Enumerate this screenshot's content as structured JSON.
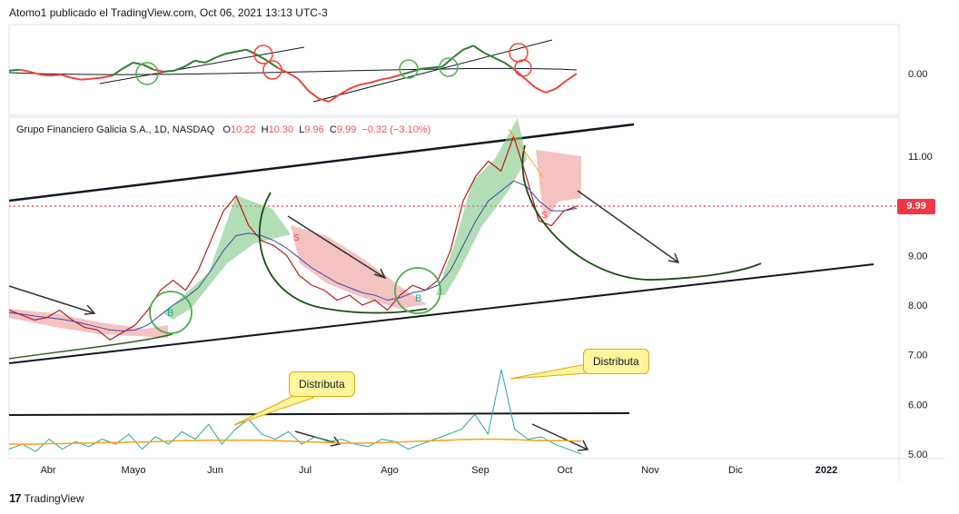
{
  "header": {
    "text": "Atomo1 publicado el TradingView.com, Oct 06, 2021 13:13 UTC-3"
  },
  "legend": {
    "symbol": "Grupo Financiero Galicia S.A., 1D, NASDAQ",
    "open_label": "O",
    "open": "10.22",
    "high_label": "H",
    "high": "10.30",
    "low_label": "L",
    "low": "9.96",
    "close_label": "C",
    "close": "9.99",
    "change": "−0.32 (−3.10%)"
  },
  "price_tag": "9.99",
  "callouts": [
    {
      "text": "Distributa"
    },
    {
      "text": "Distributa"
    }
  ],
  "footer": {
    "brand": "TradingView"
  },
  "colors": {
    "up": "#2e7d32",
    "down": "#f44336",
    "price_line": "#f23645",
    "volume": "#26a69a",
    "volume_ma": "#f7a21b"
  },
  "chart_data": [
    {
      "type": "line",
      "panel": "oscillator",
      "yticks": [
        "0.00"
      ],
      "series": [
        {
          "values": [
            0.2,
            0.3,
            0.1,
            -0.2,
            -0.3,
            -0.2,
            -0.5,
            -0.7,
            -0.6,
            -0.5,
            -0.3,
            0.4,
            1.0,
            0.8,
            0.3,
            0.1,
            0.2,
            0.6,
            1.2,
            1.0,
            1.5,
            1.9,
            2.1,
            2.3,
            1.8,
            1.2,
            0.5,
            0.0,
            -0.6,
            -1.8,
            -2.6,
            -2.9,
            -2.2,
            -1.6,
            -1.2,
            -1.0,
            -0.7,
            -0.5,
            -0.2,
            0.1,
            0.4,
            0.5,
            0.6,
            1.5,
            2.3,
            2.7,
            2.0,
            1.5,
            1.0,
            0.3,
            -0.6,
            -1.5,
            -2.0,
            -1.6,
            -0.8,
            -0.1
          ]
        }
      ]
    },
    {
      "type": "line",
      "panel": "price",
      "yticks": [
        "11.00",
        "10.00",
        "9.00",
        "8.00",
        "7.00",
        "6.00",
        "5.00"
      ],
      "xticks": [
        "Abr",
        "Mayo",
        "Jun",
        "Jul",
        "Ago",
        "Sep",
        "Oct",
        "Nov",
        "Dic",
        "2022"
      ],
      "current_price": 9.99,
      "series": [
        {
          "values": [
            7.9,
            7.8,
            7.7,
            7.75,
            7.9,
            7.7,
            7.55,
            7.5,
            7.3,
            7.45,
            7.6,
            7.9,
            8.3,
            8.5,
            8.3,
            8.7,
            9.3,
            9.9,
            10.2,
            9.6,
            9.3,
            9.2,
            9.0,
            8.6,
            8.4,
            8.3,
            8.1,
            8.2,
            8.0,
            8.1,
            7.9,
            8.2,
            8.4,
            8.3,
            8.5,
            9.1,
            10.1,
            10.6,
            10.9,
            10.7,
            11.4,
            10.6,
            9.7,
            9.6,
            9.9,
            9.99
          ]
        },
        {
          "values": [
            7.85,
            7.82,
            7.78,
            7.75,
            7.72,
            7.68,
            7.62,
            7.56,
            7.5,
            7.48,
            7.5,
            7.6,
            7.8,
            8.0,
            8.15,
            8.35,
            8.7,
            9.1,
            9.4,
            9.45,
            9.4,
            9.3,
            9.15,
            8.95,
            8.75,
            8.6,
            8.45,
            8.35,
            8.25,
            8.2,
            8.1,
            8.15,
            8.25,
            8.3,
            8.4,
            8.7,
            9.2,
            9.7,
            10.1,
            10.3,
            10.5,
            10.4,
            10.1,
            9.9,
            9.9,
            9.95
          ]
        }
      ]
    },
    {
      "type": "area",
      "panel": "volume",
      "series": [
        {
          "values": [
            5.1,
            5.2,
            5.05,
            5.3,
            5.1,
            5.25,
            5.15,
            5.3,
            5.2,
            5.4,
            5.1,
            5.35,
            5.2,
            5.45,
            5.3,
            5.6,
            5.2,
            5.5,
            5.7,
            5.4,
            5.3,
            5.45,
            5.2,
            5.35,
            5.25,
            5.3,
            5.2,
            5.15,
            5.3,
            5.25,
            5.1,
            5.2,
            5.3,
            5.4,
            5.5,
            5.8,
            5.4,
            6.7,
            5.5,
            5.3,
            5.35,
            5.2,
            5.1,
            5.0
          ]
        },
        {
          "values": [
            5.2,
            5.2,
            5.2,
            5.21,
            5.21,
            5.22,
            5.22,
            5.23,
            5.23,
            5.24,
            5.24,
            5.25,
            5.26,
            5.27,
            5.27,
            5.28,
            5.28,
            5.28,
            5.28,
            5.28,
            5.27,
            5.26,
            5.25,
            5.24,
            5.23,
            5.22,
            5.22,
            5.22,
            5.23,
            5.24,
            5.25,
            5.26,
            5.27,
            5.28,
            5.29,
            5.3,
            5.3,
            5.3,
            5.29,
            5.28,
            5.27,
            5.27,
            5.27,
            5.26
          ]
        }
      ]
    }
  ]
}
